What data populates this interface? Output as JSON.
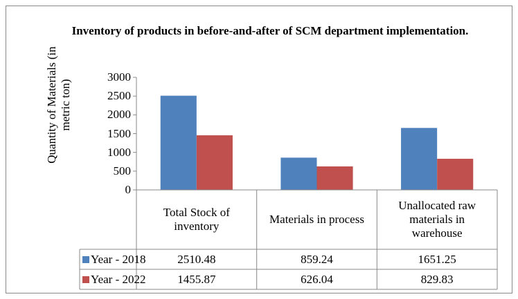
{
  "chart_data": {
    "type": "bar",
    "title": "Inventory of products in before-and-after of SCM department implementation.",
    "y_label": "Quantity of Materials (in metric ton)",
    "categories": [
      "Total Stock of inventory",
      "Materials in process",
      "Unallocated raw materials in warehouse"
    ],
    "series": [
      {
        "name": "Year - 2018",
        "color": "#4f81bd",
        "values": [
          2510.48,
          859.24,
          1651.25
        ]
      },
      {
        "name": "Year - 2022",
        "color": "#c0504d",
        "values": [
          1455.87,
          626.04,
          829.83
        ]
      }
    ],
    "ylim": [
      0,
      3000
    ],
    "yticks": [
      0,
      500,
      1000,
      1500,
      2000,
      2500,
      3000
    ],
    "grid": false,
    "data_table": true
  }
}
